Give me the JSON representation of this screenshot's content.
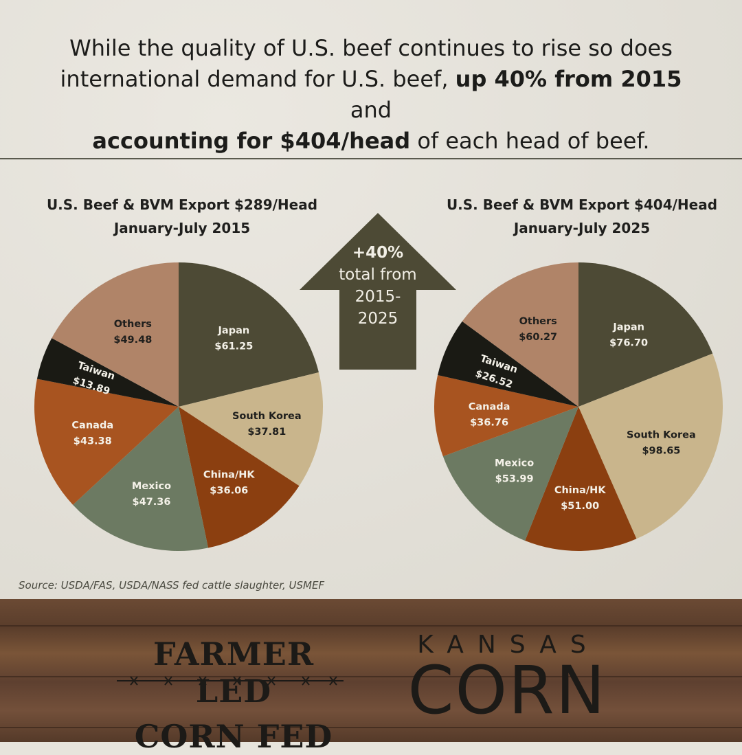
{
  "headline": {
    "part1": "While the quality of U.S. beef continues to rise so does international demand for U.S. beef, ",
    "bold1": "up 40% from 2015",
    "part2": " and ",
    "bold2": "accounting for $404/head",
    "part3": " of each head of beef."
  },
  "arrow": {
    "line1": "+40%",
    "line2": "total from",
    "line3": "2015-",
    "line4": "2025",
    "color": "#4d4a35"
  },
  "source": "Source: USDA/FAS, USDA/NASS fed cattle slaughter, USMEF",
  "footer": {
    "farmer_line1": "FARMER LED",
    "farmer_line2": "CORN FED",
    "kansas": "KANSAS",
    "corn": "CORN"
  },
  "colors": {
    "Japan": "#4d4a35",
    "South Korea": "#c9b58c",
    "China/HK": "#8b3f10",
    "Mexico": "#6c7a62",
    "Canada": "#a85420",
    "Taiwan": "#1a1a14",
    "Others": "#b08468"
  },
  "chart_data": [
    {
      "type": "pie",
      "title_line1": "U.S. Beef & BVM Export $289/Head",
      "title_line2": "January-July 2015",
      "slices": [
        {
          "label": "Japan",
          "value_label": "$61.25",
          "value": 61.25
        },
        {
          "label": "South Korea",
          "value_label": "$37.81",
          "value": 37.81
        },
        {
          "label": "China/HK",
          "value_label": "$36.06",
          "value": 36.06
        },
        {
          "label": "Mexico",
          "value_label": "$47.36",
          "value": 47.36
        },
        {
          "label": "Canada",
          "value_label": "$43.38",
          "value": 43.38
        },
        {
          "label": "Taiwan",
          "value_label": "$13.89",
          "value": 13.89
        },
        {
          "label": "Others",
          "value_label": "$49.48",
          "value": 49.48
        }
      ]
    },
    {
      "type": "pie",
      "title_line1": "U.S. Beef & BVM Export $404/Head",
      "title_line2": "January-July 2025",
      "slices": [
        {
          "label": "Japan",
          "value_label": "$76.70",
          "value": 76.7
        },
        {
          "label": "South Korea",
          "value_label": "$98.65",
          "value": 98.65
        },
        {
          "label": "China/HK",
          "value_label": "$51.00",
          "value": 51.0
        },
        {
          "label": "Mexico",
          "value_label": "$53.99",
          "value": 53.99
        },
        {
          "label": "Canada",
          "value_label": "$36.76",
          "value": 36.76
        },
        {
          "label": "Taiwan",
          "value_label": "$26.52",
          "value": 26.52
        },
        {
          "label": "Others",
          "value_label": "$60.27",
          "value": 60.27
        }
      ]
    }
  ]
}
